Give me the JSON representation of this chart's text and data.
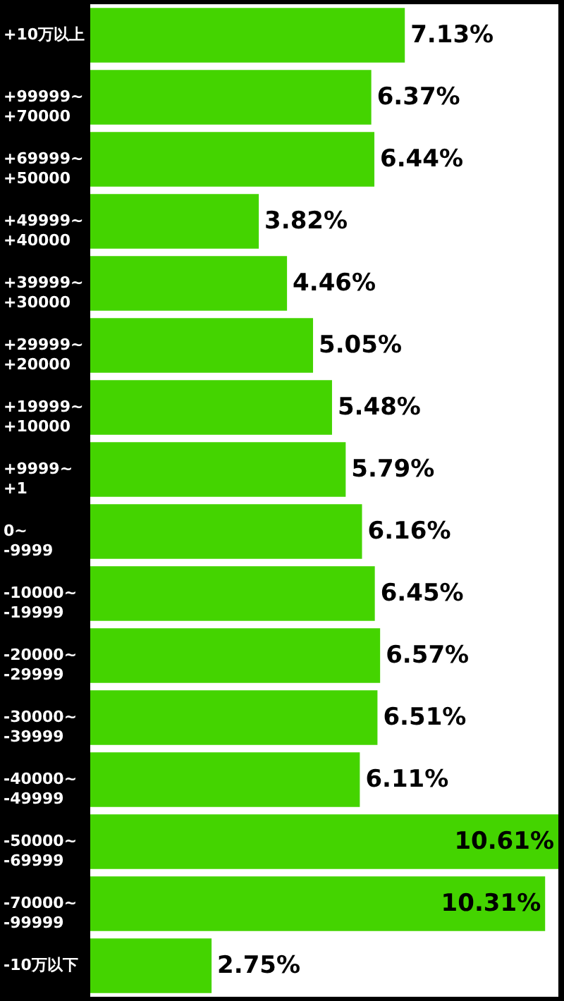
{
  "chart_data": {
    "type": "bar",
    "orientation": "horizontal",
    "categories": [
      "+10万以上",
      "+99999~\n+70000",
      "+69999~\n+50000",
      "+49999~\n+40000",
      "+39999~\n+30000",
      "+29999~\n+20000",
      "+19999~\n+10000",
      "+9999~\n+1",
      "0~\n-9999",
      "-10000~\n-19999",
      "-20000~\n-29999",
      "-30000~\n-39999",
      "-40000~\n-49999",
      "-50000~\n-69999",
      "-70000~\n-99999",
      "-10万以下"
    ],
    "values": [
      7.13,
      6.37,
      6.44,
      3.82,
      4.46,
      5.05,
      5.48,
      5.79,
      6.16,
      6.45,
      6.57,
      6.51,
      6.11,
      10.61,
      10.31,
      2.75
    ],
    "value_labels": [
      "7.13%",
      "6.37%",
      "6.44%",
      "3.82%",
      "4.46%",
      "5.05%",
      "5.48%",
      "5.79%",
      "6.16%",
      "6.45%",
      "6.57%",
      "6.51%",
      "6.11%",
      "10.61%",
      "10.31%",
      "2.75%"
    ],
    "color": "#44d400"
  }
}
